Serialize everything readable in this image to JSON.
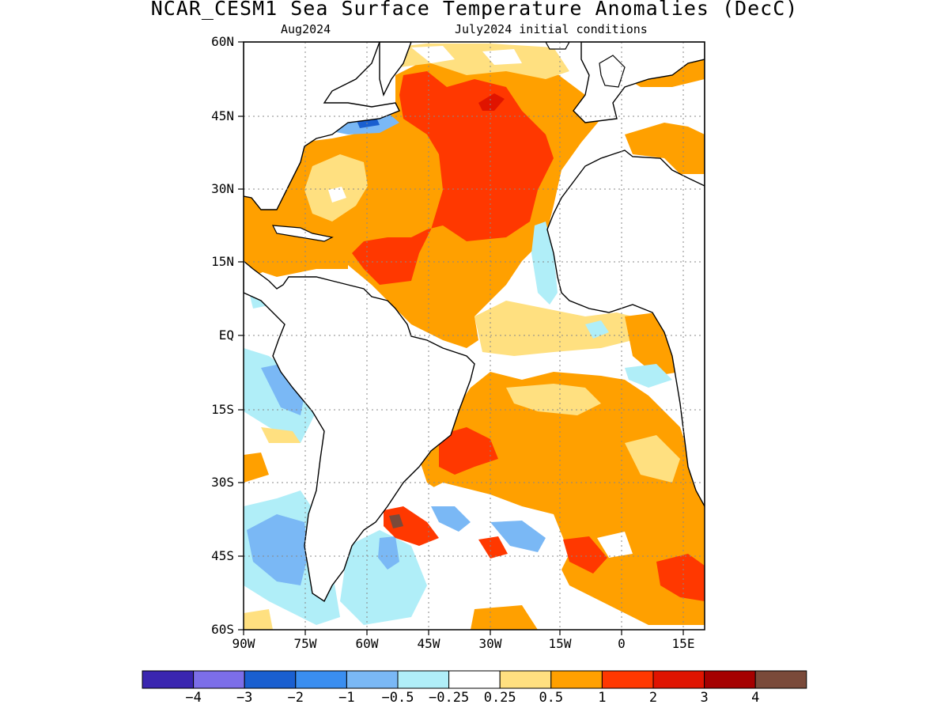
{
  "title": "NCAR_CESM1 Sea Surface Temperature Anomalies (DecC)",
  "subtitle_left": "Aug2024",
  "subtitle_right": "July2024 initial conditions",
  "lat_labels": [
    "60N",
    "45N",
    "30N",
    "15N",
    "EQ",
    "15S",
    "30S",
    "45S",
    "60S"
  ],
  "lon_labels": [
    "90W",
    "75W",
    "60W",
    "45W",
    "30W",
    "15W",
    "0",
    "15E"
  ],
  "colorbar": {
    "colors": [
      "#3a26b0",
      "#7c6ee8",
      "#1a5fd0",
      "#3a8ef0",
      "#7ab8f5",
      "#b0eef8",
      "#ffffff",
      "#ffe080",
      "#ffa000",
      "#ff3800",
      "#e01400",
      "#a50000",
      "#7a4a3a"
    ],
    "labels": [
      "−4",
      "−3",
      "−2",
      "−1",
      "−0.5",
      "−0.25",
      "0.25",
      "0.5",
      "1",
      "2",
      "3",
      "4"
    ]
  }
}
